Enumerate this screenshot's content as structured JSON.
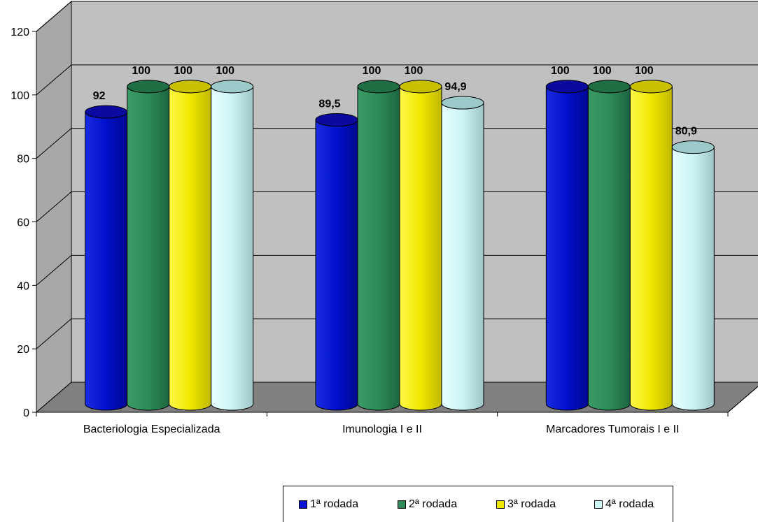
{
  "chart_data": {
    "type": "bar",
    "categories": [
      "Bacteriologia Especializada",
      "Imunologia I e II",
      "Marcadores Tumorais I e II"
    ],
    "series": [
      {
        "name": "1ª rodada",
        "values": [
          92,
          89.5,
          100
        ],
        "labels": [
          "92",
          "89,5",
          "100"
        ],
        "color": "#0a14d6",
        "top": "#0a0aa0"
      },
      {
        "name": "2ª rodada",
        "values": [
          100,
          100,
          100
        ],
        "labels": [
          "100",
          "100",
          "100"
        ],
        "color": "#2e8b57",
        "top": "#1f6e44"
      },
      {
        "name": "3ª rodada",
        "values": [
          100,
          100,
          100
        ],
        "labels": [
          "100",
          "100",
          "100"
        ],
        "color": "#f0e800",
        "top": "#c8c000"
      },
      {
        "name": "4ª rodada",
        "values": [
          100,
          94.9,
          80.9
        ],
        "labels": [
          "100",
          "94,9",
          "80,9"
        ],
        "color": "#ccf8f8",
        "top": "#9ccaca"
      }
    ],
    "ylim": [
      0,
      120
    ],
    "yticks": [
      "0",
      "20",
      "40",
      "60",
      "80",
      "100",
      "120"
    ],
    "grid": true,
    "legend_position": "bottom"
  },
  "colors": {
    "back_wall": "#c0c0c0",
    "floor": "#808080",
    "side_wall": "#a8a8a8"
  }
}
